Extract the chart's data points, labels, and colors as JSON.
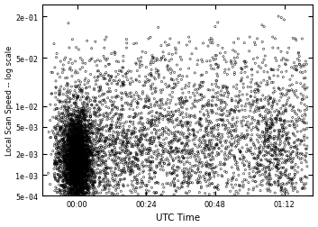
{
  "title": "",
  "xlabel": "UTC Time",
  "ylabel": "Local Scan Speed -- log scale",
  "x_ticks_minutes": [
    0,
    24,
    48,
    72
  ],
  "x_tick_labels": [
    "00:00",
    "00:24",
    "00:48",
    "01:12"
  ],
  "y_ticks": [
    0.0005,
    0.001,
    0.002,
    0.005,
    0.01,
    0.05,
    0.2
  ],
  "y_tick_labels": [
    "5e-04",
    "1e-03",
    "2e-03",
    "5e-03",
    "1e-02",
    "5e-02",
    "2e-01"
  ],
  "scatter_color": "#000000",
  "background_color": "#ffffff",
  "marker_size": 2.5,
  "marker_linewidth": 0.35,
  "seed": 99,
  "xlim": [
    -12,
    82
  ],
  "ylim_low": 0.0005,
  "ylim_high": 0.3
}
